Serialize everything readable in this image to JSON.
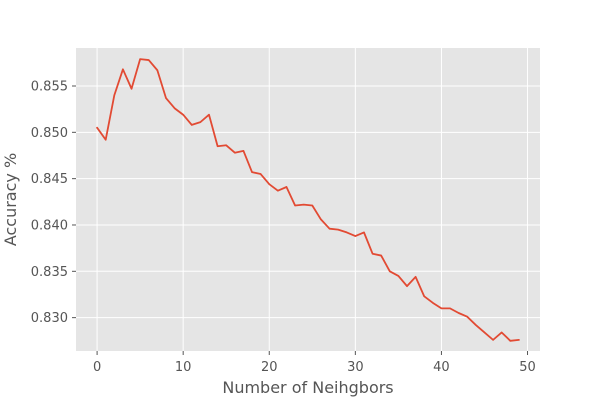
{
  "chart_data": {
    "type": "line",
    "title": "",
    "xlabel": "Number of Neihgbors",
    "ylabel": "Accuracy %",
    "xlim": [
      -2.45,
      51.45
    ],
    "ylim": [
      0.8264,
      0.8591
    ],
    "xticks": [
      0,
      10,
      20,
      30,
      40,
      50
    ],
    "xtick_labels": [
      "0",
      "10",
      "20",
      "30",
      "40",
      "50"
    ],
    "yticks": [
      0.83,
      0.835,
      0.84,
      0.845,
      0.85,
      0.855
    ],
    "ytick_labels": [
      "0.830",
      "0.835",
      "0.840",
      "0.845",
      "0.850",
      "0.855"
    ],
    "grid": true,
    "style": "ggplot",
    "colors": {
      "plot_background": "#e5e5e5",
      "grid": "#ffffff",
      "line": "#e24a33",
      "text": "#555555"
    },
    "series": [
      {
        "x": [
          0,
          1,
          2,
          3,
          4,
          5,
          6,
          7,
          8,
          9,
          10,
          11,
          12,
          13,
          14,
          15,
          16,
          17,
          18,
          19,
          20,
          21,
          22,
          23,
          24,
          25,
          26,
          27,
          28,
          29,
          30,
          31,
          32,
          33,
          34,
          35,
          36,
          37,
          38,
          39,
          40,
          41,
          42,
          43,
          44,
          45,
          46,
          47,
          48,
          49
        ],
        "values": [
          0.8505,
          0.8492,
          0.854,
          0.8568,
          0.8547,
          0.8579,
          0.8578,
          0.8567,
          0.8537,
          0.8526,
          0.8519,
          0.8508,
          0.8511,
          0.8519,
          0.8485,
          0.8486,
          0.8478,
          0.848,
          0.8457,
          0.8455,
          0.8444,
          0.8437,
          0.8441,
          0.8421,
          0.8422,
          0.8421,
          0.8406,
          0.8396,
          0.8395,
          0.8392,
          0.8388,
          0.8392,
          0.8369,
          0.8367,
          0.835,
          0.8345,
          0.8334,
          0.8344,
          0.8323,
          0.8316,
          0.831,
          0.831,
          0.8305,
          0.8301,
          0.8292,
          0.8284,
          0.8276,
          0.8284,
          0.8275,
          0.8276
        ]
      }
    ]
  }
}
